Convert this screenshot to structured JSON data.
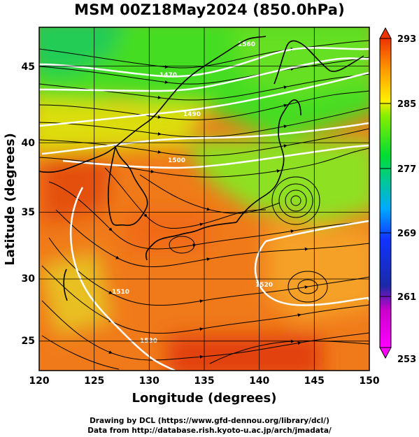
{
  "title": "MSM 00Z18May2024 (850.0hPa)",
  "chart_data": {
    "type": "heatmap",
    "title": "MSM 00Z18May2024 (850.0hPa)",
    "xlabel": "Longitude (degrees)",
    "ylabel": "Latitude  (degrees)",
    "xlim": [
      120,
      150
    ],
    "ylim": [
      22.4,
      47.6
    ],
    "xticks": [
      "120",
      "125",
      "130",
      "135",
      "140",
      "145",
      "150"
    ],
    "yticks": [
      "25",
      "30",
      "35",
      "40",
      "45"
    ],
    "colorbar": {
      "min": 253,
      "max": 293,
      "ticks": [
        "293",
        "285",
        "277",
        "269",
        "261",
        "253"
      ],
      "colors": [
        "#ff00ff",
        "#1a2aa8",
        "#00aaff",
        "#00dd66",
        "#88ee00",
        "#ffee00",
        "#ff9900",
        "#ee3300"
      ]
    },
    "contour_labels": [
      "1560",
      "1470",
      "1490",
      "1500",
      "1510",
      "1520",
      "1530"
    ],
    "cyclone_center": {
      "lon": 143.5,
      "lat": 35.5
    }
  },
  "credits": {
    "line1": "Drawing by DCL (https://www.gfd-dennou.org/library/dcl/)",
    "line2": "Data from http://database.rish.kyoto-u.ac.jp/arch/jmadata/"
  }
}
